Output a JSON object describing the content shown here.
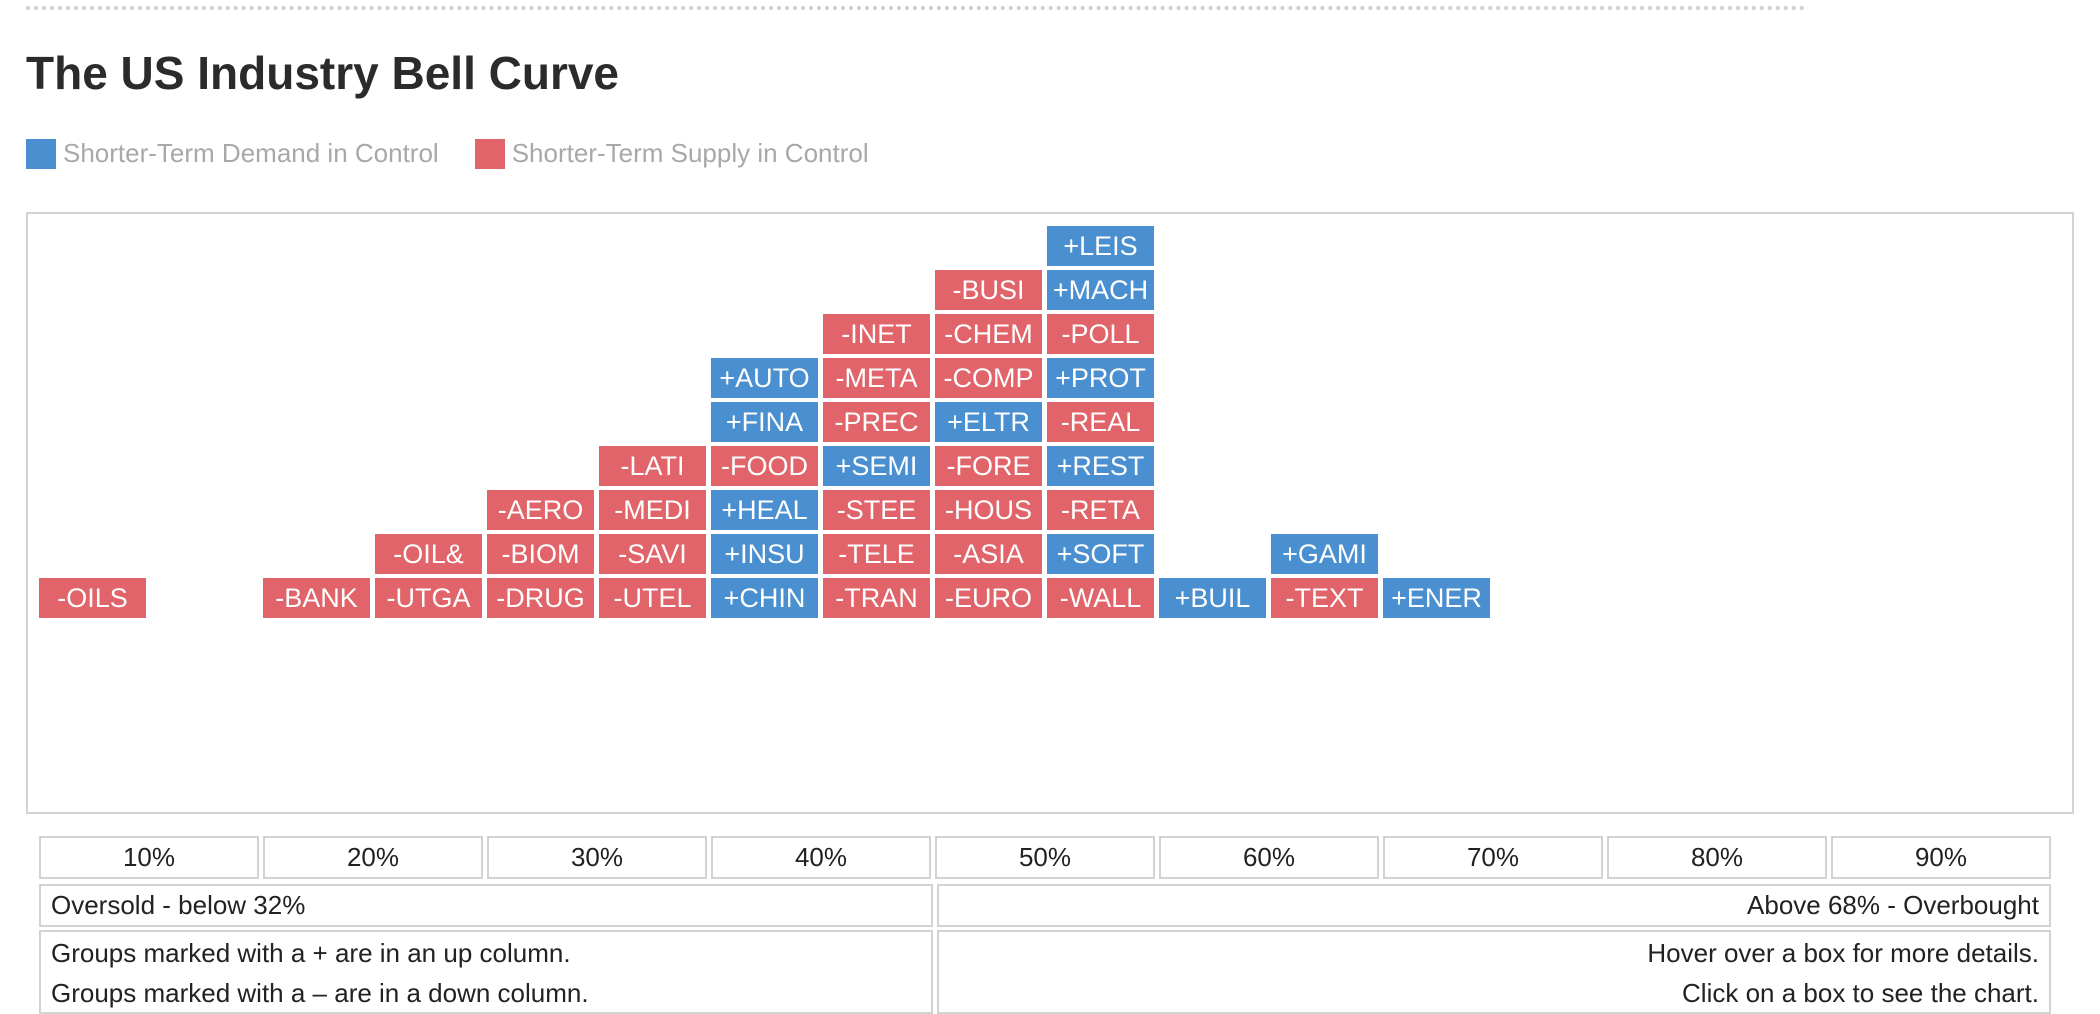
{
  "title": "The US Industry Bell Curve",
  "colors": {
    "demand": "#4a8fcf",
    "supply": "#e06469"
  },
  "legend": [
    {
      "label": "Shorter-Term Demand in Control",
      "color": "#4a8fcf"
    },
    {
      "label": "Shorter-Term Supply in Control",
      "color": "#e06469"
    }
  ],
  "chart_data": {
    "type": "table",
    "categories": [
      "10%",
      "20%",
      "30%",
      "40%",
      "50%",
      "60%",
      "70%",
      "80%",
      "90%"
    ],
    "columns": [
      {
        "bucket": "10%",
        "stacks": [
          [
            {
              "label": "-OILS",
              "side": "supply"
            }
          ],
          []
        ]
      },
      {
        "bucket": "20%",
        "stacks": [
          [
            {
              "label": "-BANK",
              "side": "supply"
            }
          ],
          [
            {
              "label": "-UTGA",
              "side": "supply"
            },
            {
              "label": "-OIL&",
              "side": "supply"
            }
          ]
        ]
      },
      {
        "bucket": "30%",
        "stacks": [
          [
            {
              "label": "-DRUG",
              "side": "supply"
            },
            {
              "label": "-BIOM",
              "side": "supply"
            },
            {
              "label": "-AERO",
              "side": "supply"
            }
          ],
          [
            {
              "label": "-UTEL",
              "side": "supply"
            },
            {
              "label": "-SAVI",
              "side": "supply"
            },
            {
              "label": "-MEDI",
              "side": "supply"
            },
            {
              "label": "-LATI",
              "side": "supply"
            }
          ]
        ]
      },
      {
        "bucket": "40%",
        "stacks": [
          [
            {
              "label": "+CHIN",
              "side": "demand"
            },
            {
              "label": "+INSU",
              "side": "demand"
            },
            {
              "label": "+HEAL",
              "side": "demand"
            },
            {
              "label": "-FOOD",
              "side": "supply"
            },
            {
              "label": "+FINA",
              "side": "demand"
            },
            {
              "label": "+AUTO",
              "side": "demand"
            }
          ],
          [
            {
              "label": "-TRAN",
              "side": "supply"
            },
            {
              "label": "-TELE",
              "side": "supply"
            },
            {
              "label": "-STEE",
              "side": "supply"
            },
            {
              "label": "+SEMI",
              "side": "demand"
            },
            {
              "label": "-PREC",
              "side": "supply"
            },
            {
              "label": "-META",
              "side": "supply"
            },
            {
              "label": "-INET",
              "side": "supply"
            }
          ]
        ]
      },
      {
        "bucket": "50%",
        "stacks": [
          [
            {
              "label": "-EURO",
              "side": "supply"
            },
            {
              "label": "-ASIA",
              "side": "supply"
            },
            {
              "label": "-HOUS",
              "side": "supply"
            },
            {
              "label": "-FORE",
              "side": "supply"
            },
            {
              "label": "+ELTR",
              "side": "demand"
            },
            {
              "label": "-COMP",
              "side": "supply"
            },
            {
              "label": "-CHEM",
              "side": "supply"
            },
            {
              "label": "-BUSI",
              "side": "supply"
            }
          ],
          [
            {
              "label": "-WALL",
              "side": "supply"
            },
            {
              "label": "+SOFT",
              "side": "demand"
            },
            {
              "label": "-RETA",
              "side": "supply"
            },
            {
              "label": "+REST",
              "side": "demand"
            },
            {
              "label": "-REAL",
              "side": "supply"
            },
            {
              "label": "+PROT",
              "side": "demand"
            },
            {
              "label": "-POLL",
              "side": "supply"
            },
            {
              "label": "+MACH",
              "side": "demand"
            },
            {
              "label": "+LEIS",
              "side": "demand"
            }
          ]
        ]
      },
      {
        "bucket": "60%",
        "stacks": [
          [
            {
              "label": "+BUIL",
              "side": "demand"
            }
          ],
          [
            {
              "label": "-TEXT",
              "side": "supply"
            },
            {
              "label": "+GAMI",
              "side": "demand"
            }
          ]
        ]
      },
      {
        "bucket": "70%",
        "stacks": [
          [
            {
              "label": "+ENER",
              "side": "demand"
            }
          ],
          []
        ]
      },
      {
        "bucket": "80%",
        "stacks": [
          [],
          []
        ]
      },
      {
        "bucket": "90%",
        "stacks": [
          [],
          []
        ]
      }
    ]
  },
  "zones": {
    "oversold": "Oversold - below 32%",
    "overbought": "Above 68% - Overbought"
  },
  "notes": {
    "up": "Groups marked with a + are in an up column.",
    "down": "Groups marked with a – are in a down column.",
    "hover": "Hover over a box for more details.",
    "click": "Click on a box to see the chart."
  }
}
